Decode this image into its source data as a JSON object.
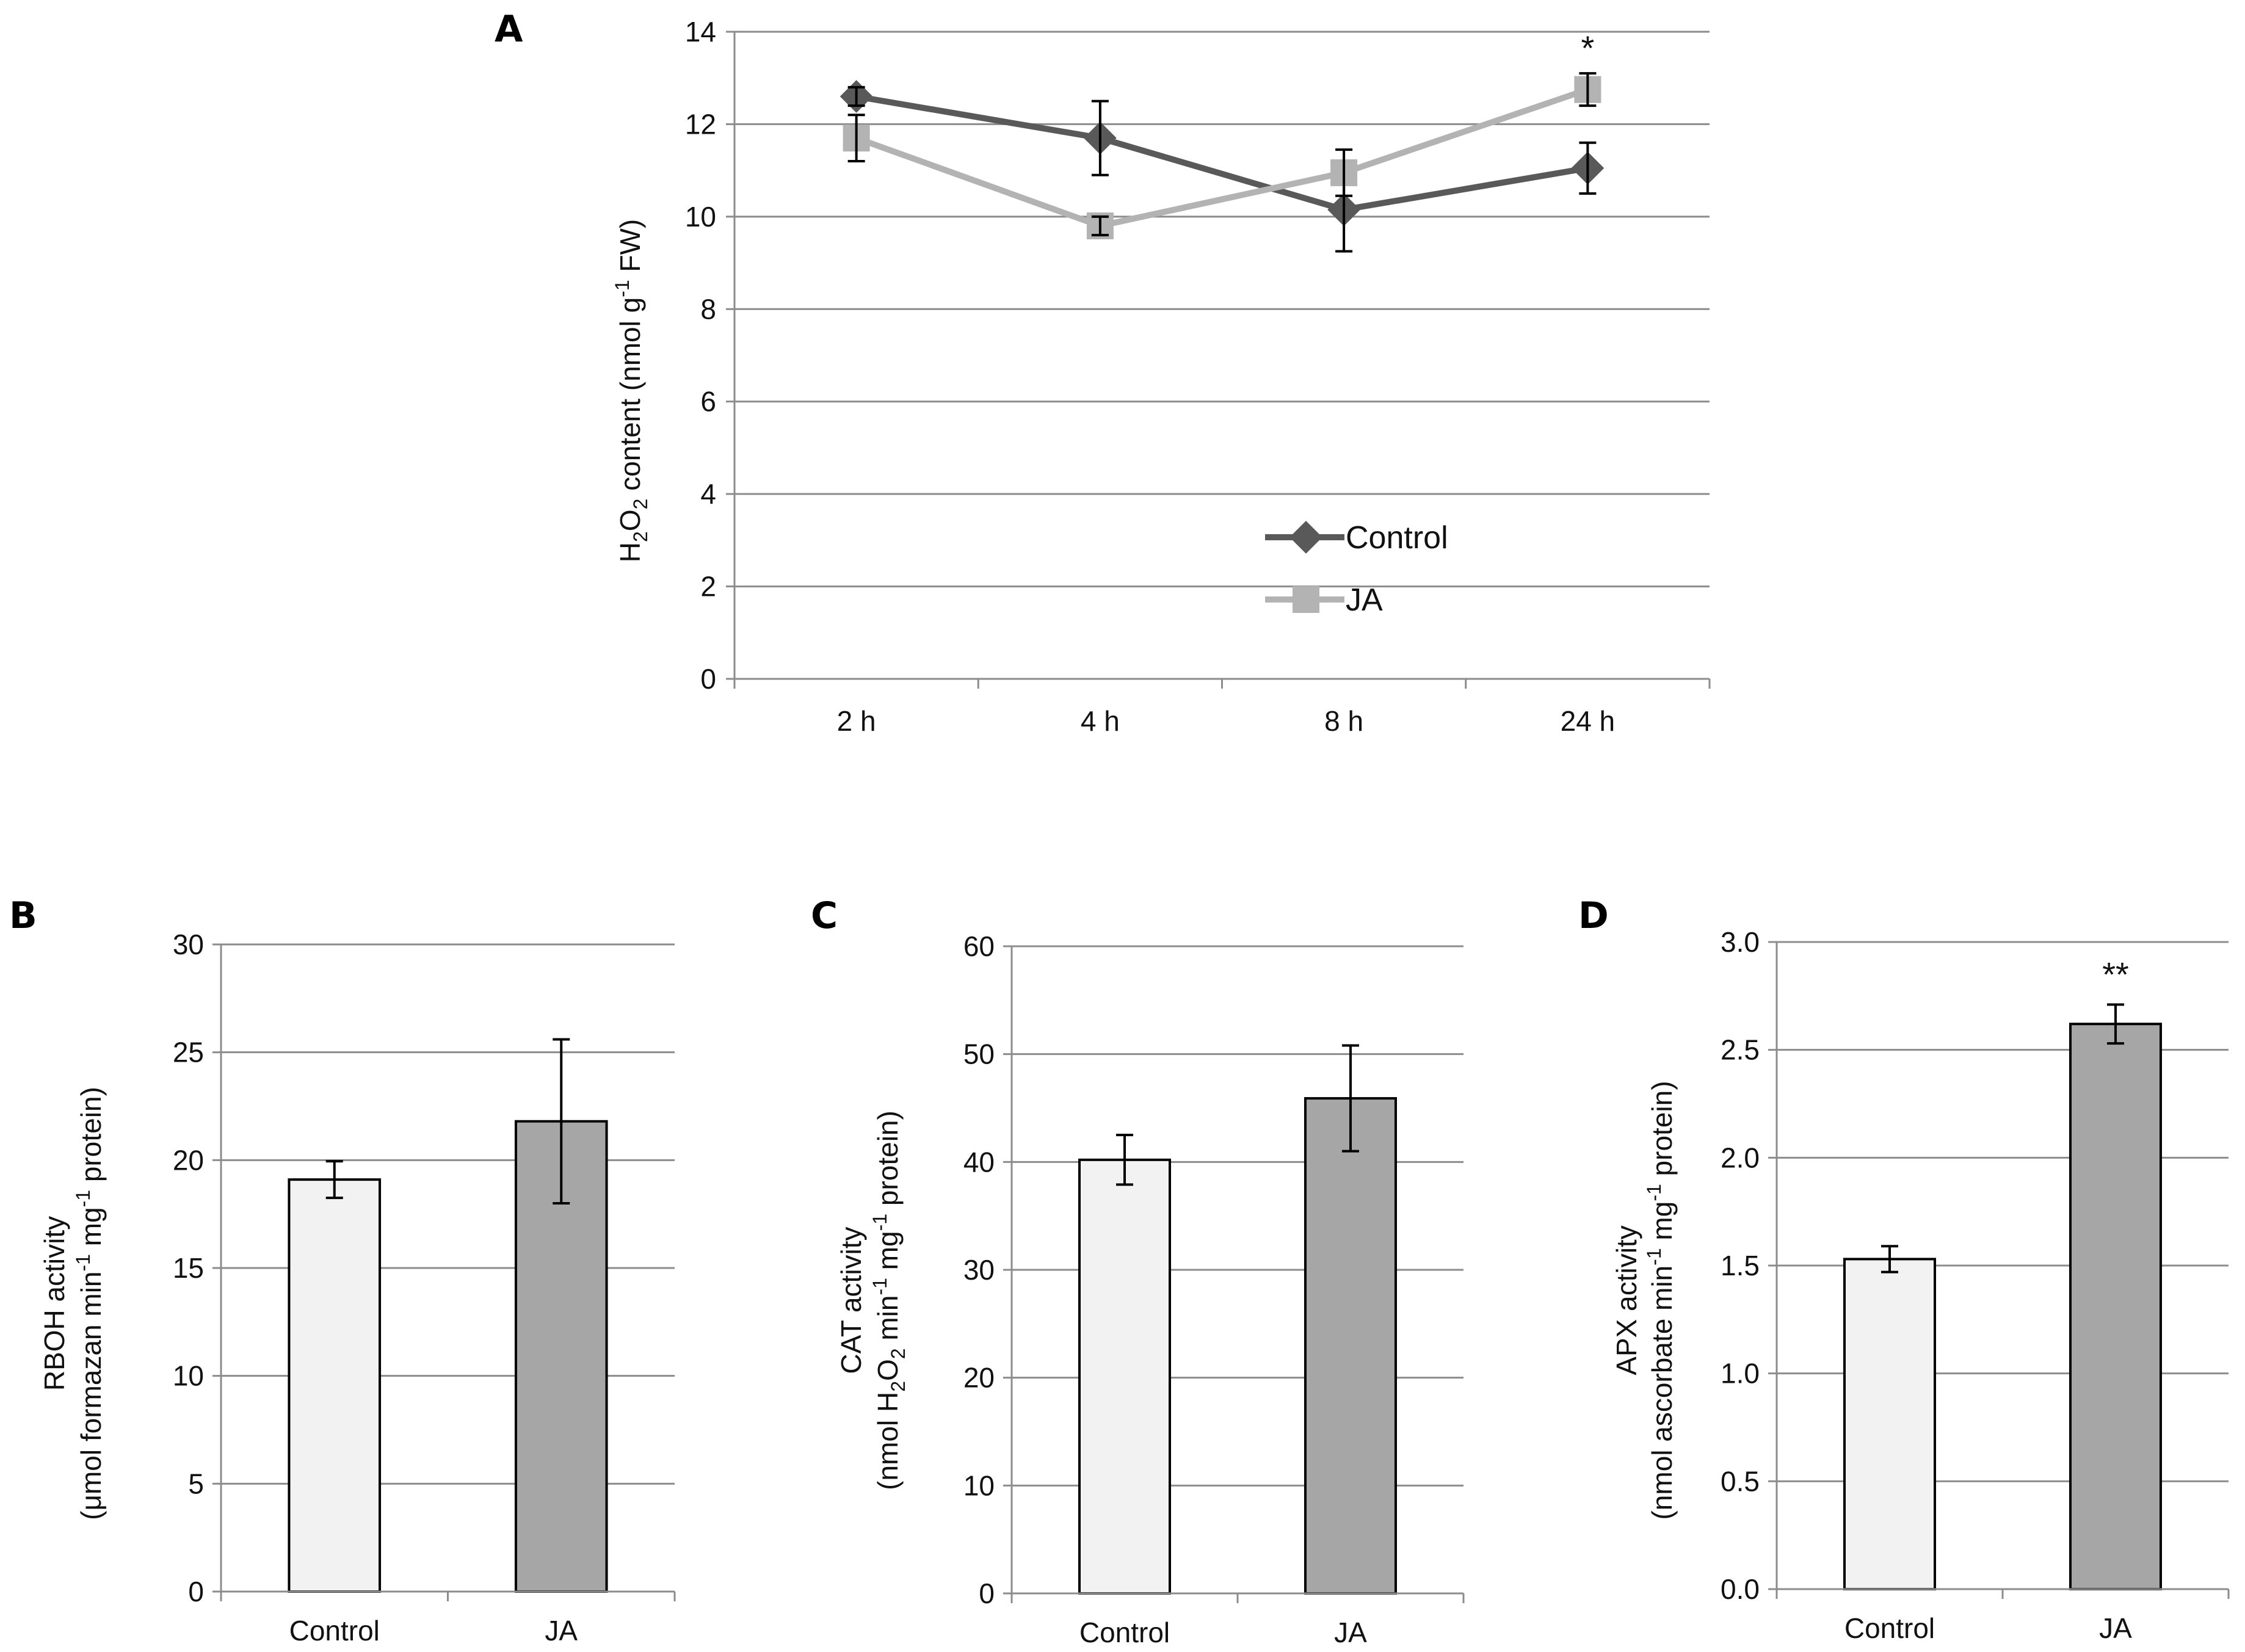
{
  "chart_data": [
    {
      "id": "A",
      "type": "line",
      "panel_label": "A",
      "categories": [
        "2 h",
        "4 h",
        "8 h",
        "24 h"
      ],
      "ylabel_parts": {
        "pre": "H",
        "sub1": "2",
        "mid": "O",
        "sub2": "2",
        "post": " content (nmol g",
        "sup": "-1",
        "end": " FW)"
      },
      "ylim": [
        0,
        14
      ],
      "yticks": [
        "0",
        "2",
        "4",
        "6",
        "8",
        "10",
        "12",
        "14"
      ],
      "grid": true,
      "legend_position": "lower-center",
      "series": [
        {
          "name": "Control",
          "values": [
            12.6,
            11.7,
            10.15,
            11.05
          ],
          "errors": [
            0.2,
            0.8,
            0.9,
            0.55
          ],
          "color": "#595959",
          "marker": "diamond"
        },
        {
          "name": "JA",
          "values": [
            11.7,
            9.8,
            10.95,
            12.75
          ],
          "errors": [
            0.5,
            0.2,
            0.5,
            0.35
          ],
          "color": "#b3b3b3",
          "marker": "square"
        }
      ],
      "annotations": [
        {
          "category": "24 h",
          "text": "*"
        }
      ]
    },
    {
      "id": "B",
      "type": "bar",
      "panel_label": "B",
      "categories": [
        "Control",
        "JA"
      ],
      "values": [
        19.1,
        21.8
      ],
      "errors": [
        0.85,
        3.8
      ],
      "colors": [
        "#f2f2f2",
        "#a6a6a6"
      ],
      "ylabel_line1": "RBOH activity",
      "ylabel_line2": {
        "pre": "(μmol formazan min",
        "sup1": "-1",
        "mid": " mg",
        "sup2": "-1",
        "post": " protein)"
      },
      "ylim": [
        0,
        30
      ],
      "yticks": [
        "0",
        "5",
        "10",
        "15",
        "20",
        "25",
        "30"
      ],
      "grid": true,
      "annotations": []
    },
    {
      "id": "C",
      "type": "bar",
      "panel_label": "C",
      "categories": [
        "Control",
        "JA"
      ],
      "values": [
        40.2,
        45.9
      ],
      "errors": [
        2.3,
        4.9
      ],
      "colors": [
        "#f2f2f2",
        "#a6a6a6"
      ],
      "ylabel_line1": "CAT activity",
      "ylabel_line2": {
        "pre": "(nmol H",
        "sub1": "2",
        "mid0": "O",
        "sub2": "2",
        "mid": " min",
        "sup1": "-1",
        "mid2": " mg",
        "sup2": "-1",
        "post": " protein)"
      },
      "ylim": [
        0,
        60
      ],
      "yticks": [
        "0",
        "10",
        "20",
        "30",
        "40",
        "50",
        "60"
      ],
      "grid": true,
      "annotations": []
    },
    {
      "id": "D",
      "type": "bar",
      "panel_label": "D",
      "categories": [
        "Control",
        "JA"
      ],
      "values": [
        1.53,
        2.62
      ],
      "errors": [
        0.06,
        0.09
      ],
      "colors": [
        "#f2f2f2",
        "#a6a6a6"
      ],
      "ylabel_line1": "APX activity",
      "ylabel_line2": {
        "pre": "(nmol ascorbate min",
        "sup1": "-1",
        "mid": " mg",
        "sup2": "-1",
        "post": " protein)"
      },
      "ylim": [
        0,
        3.0
      ],
      "yticks": [
        "0.0",
        "0.5",
        "1.0",
        "1.5",
        "2.0",
        "2.5",
        "3.0"
      ],
      "grid": true,
      "annotations": [
        {
          "category": "JA",
          "text": "**"
        }
      ]
    }
  ]
}
